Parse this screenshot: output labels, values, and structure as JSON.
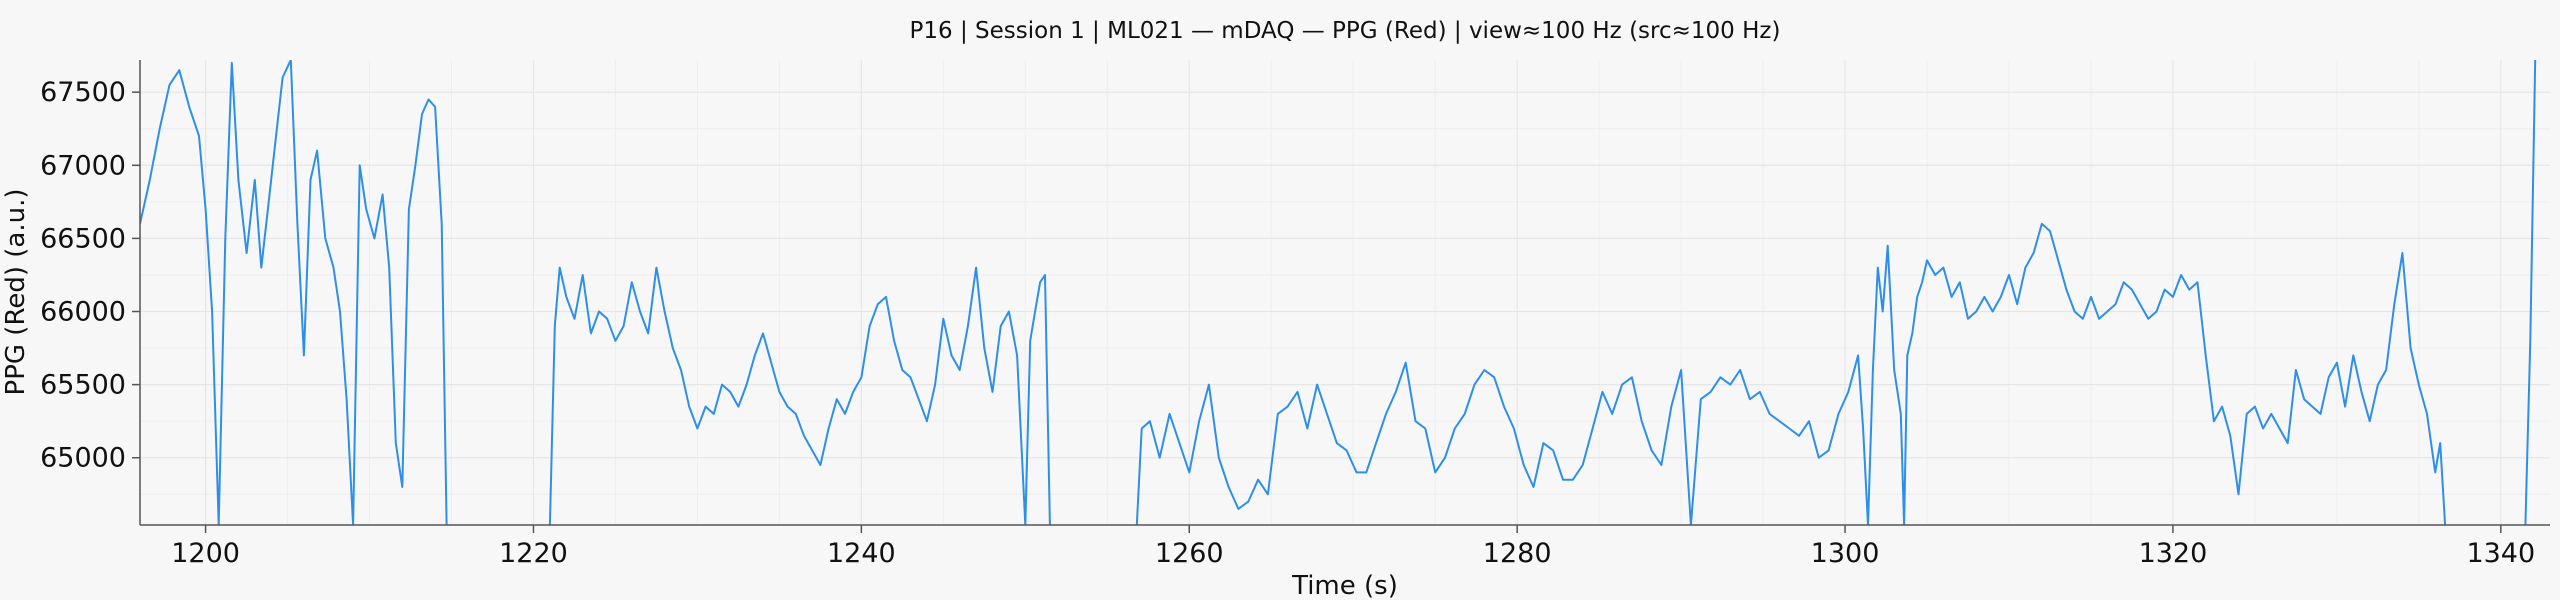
{
  "chart_data": {
    "type": "line",
    "title": "P16 | Session 1 | ML021 — mDAQ — PPG (Red) | view≈100 Hz (src≈100 Hz)",
    "xlabel": "Time (s)",
    "ylabel": "PPG (Red) (a.u.)",
    "xlim": [
      1196,
      1343
    ],
    "ylim": [
      64540,
      67720
    ],
    "xticks": [
      1200,
      1220,
      1240,
      1260,
      1280,
      1300,
      1320,
      1340
    ],
    "yticks": [
      65000,
      65500,
      66000,
      66500,
      67000,
      67500
    ],
    "grid": true,
    "legend": false,
    "colors": {
      "line": "#2e8fe8",
      "background": "#f7f7f7",
      "grid": "#e6e6e6",
      "axis": "#555555"
    },
    "series": [
      {
        "segments": [
          {
            "x": [
              1196.0,
              1196.6,
              1197.2,
              1197.8,
              1198.4,
              1199.0,
              1199.6,
              1200.0,
              1200.4,
              1200.8,
              1201.2,
              1201.6,
              1202.0,
              1202.5,
              1203.0,
              1203.4,
              1203.8,
              1204.2,
              1204.7,
              1205.2,
              1205.6,
              1206.0,
              1206.4,
              1206.8,
              1207.3,
              1207.8,
              1208.2,
              1208.6,
              1209.0,
              1209.4,
              1209.8,
              1210.3,
              1210.8,
              1211.2,
              1211.6,
              1212.0,
              1212.4,
              1212.8,
              1213.2,
              1213.6,
              1214.0,
              1214.4,
              1214.7
            ],
            "y": [
              66600,
              66900,
              67250,
              67550,
              67650,
              67400,
              67200,
              66700,
              66000,
              64540,
              66500,
              67700,
              66900,
              66400,
              66900,
              66300,
              66700,
              67100,
              67600,
              67720,
              66600,
              65700,
              66900,
              67100,
              66500,
              66300,
              66000,
              65400,
              64540,
              67000,
              66700,
              66500,
              66800,
              66300,
              65100,
              64800,
              66700,
              67000,
              67350,
              67450,
              67400,
              66600,
              64540
            ]
          },
          {
            "x": [
              1221.0,
              1221.3,
              1221.6,
              1222.0,
              1222.5,
              1223.0,
              1223.5,
              1224.0,
              1224.5,
              1225.0,
              1225.5,
              1226.0,
              1226.5,
              1227.0,
              1227.5,
              1228.0,
              1228.5,
              1229.0,
              1229.5,
              1230.0,
              1230.5,
              1231.0,
              1231.5,
              1232.0,
              1232.5,
              1233.0,
              1233.5,
              1234.0,
              1234.5,
              1235.0,
              1235.5,
              1236.0,
              1236.5,
              1237.0,
              1237.5,
              1238.0,
              1238.5,
              1239.0,
              1239.5,
              1240.0,
              1240.5,
              1241.0,
              1241.5,
              1242.0,
              1242.5,
              1243.0,
              1243.5,
              1244.0,
              1244.5,
              1245.0,
              1245.5,
              1246.0,
              1246.5,
              1247.0,
              1247.5,
              1248.0,
              1248.5,
              1249.0,
              1249.5,
              1250.0,
              1250.3,
              1250.6,
              1250.9,
              1251.2,
              1251.5
            ],
            "y": [
              64540,
              65900,
              66300,
              66100,
              65950,
              66250,
              65850,
              66000,
              65950,
              65800,
              65900,
              66200,
              66000,
              65850,
              66300,
              66000,
              65750,
              65600,
              65350,
              65200,
              65350,
              65300,
              65500,
              65450,
              65350,
              65500,
              65700,
              65850,
              65650,
              65450,
              65350,
              65300,
              65150,
              65050,
              64950,
              65200,
              65400,
              65300,
              65450,
              65550,
              65900,
              66050,
              66100,
              65800,
              65600,
              65550,
              65400,
              65250,
              65500,
              65950,
              65700,
              65600,
              65900,
              66300,
              65750,
              65450,
              65900,
              66000,
              65700,
              64540,
              65800,
              66000,
              66200,
              66250,
              64540
            ]
          },
          {
            "x": [
              1256.8,
              1257.1,
              1257.6,
              1258.2,
              1258.8,
              1259.4,
              1260.0,
              1260.6,
              1261.2,
              1261.8,
              1262.4,
              1263.0,
              1263.6,
              1264.2,
              1264.8,
              1265.4,
              1266.0,
              1266.6,
              1267.2,
              1267.8,
              1268.4,
              1269.0,
              1269.6,
              1270.2,
              1270.8,
              1271.4,
              1272.0,
              1272.6,
              1273.2,
              1273.8,
              1274.4,
              1275.0,
              1275.6,
              1276.2,
              1276.8,
              1277.4,
              1278.0,
              1278.6,
              1279.2,
              1279.8,
              1280.4,
              1281.0,
              1281.6,
              1282.2,
              1282.8,
              1283.4,
              1284.0,
              1284.6,
              1285.2,
              1285.8,
              1286.4,
              1287.0,
              1287.6,
              1288.2,
              1288.8,
              1289.4,
              1290.0,
              1290.6,
              1291.2,
              1291.8,
              1292.4,
              1293.0,
              1293.6,
              1294.2,
              1294.8,
              1295.4,
              1296.0,
              1296.6,
              1297.2,
              1297.8,
              1298.4,
              1299.0,
              1299.6,
              1300.2,
              1300.8,
              1301.1,
              1301.4,
              1301.7,
              1302.0,
              1302.3,
              1302.6,
              1303.0,
              1303.4,
              1303.6,
              1303.8,
              1304.1,
              1304.4,
              1304.7,
              1305.0,
              1305.5,
              1306.0,
              1306.5,
              1307.0,
              1307.5,
              1308.0,
              1308.5,
              1309.0,
              1309.5,
              1310.0,
              1310.5,
              1311.0,
              1311.5,
              1312.0,
              1312.5,
              1313.0,
              1313.5,
              1314.0,
              1314.5,
              1315.0,
              1315.5,
              1316.0,
              1316.5,
              1317.0,
              1317.5,
              1318.0,
              1318.5,
              1319.0,
              1319.5,
              1320.0,
              1320.5,
              1321.0,
              1321.5,
              1322.0,
              1322.5,
              1323.0,
              1323.5,
              1324.0,
              1324.5,
              1325.0,
              1325.5,
              1326.0,
              1326.5,
              1327.0,
              1327.5,
              1328.0,
              1328.5,
              1329.0,
              1329.5,
              1330.0,
              1330.5,
              1331.0,
              1331.5,
              1332.0,
              1332.5,
              1333.0,
              1333.5,
              1334.0,
              1334.5,
              1335.0,
              1335.5,
              1336.0,
              1336.3,
              1336.6
            ],
            "y": [
              64540,
              65200,
              65250,
              65000,
              65300,
              65100,
              64900,
              65250,
              65500,
              65000,
              64800,
              64650,
              64700,
              64850,
              64750,
              65300,
              65350,
              65450,
              65200,
              65500,
              65300,
              65100,
              65050,
              64900,
              64900,
              65100,
              65300,
              65450,
              65650,
              65250,
              65200,
              64900,
              65000,
              65200,
              65300,
              65500,
              65600,
              65550,
              65350,
              65200,
              64950,
              64800,
              65100,
              65050,
              64850,
              64850,
              64950,
              65200,
              65450,
              65300,
              65500,
              65550,
              65250,
              65050,
              64950,
              65350,
              65600,
              64540,
              65400,
              65450,
              65550,
              65500,
              65600,
              65400,
              65450,
              65300,
              65250,
              65200,
              65150,
              65250,
              65000,
              65050,
              65300,
              65450,
              65700,
              65200,
              64540,
              65600,
              66300,
              66000,
              66450,
              65600,
              65300,
              64540,
              65700,
              65850,
              66100,
              66200,
              66350,
              66250,
              66300,
              66100,
              66200,
              65950,
              66000,
              66100,
              66000,
              66100,
              66250,
              66050,
              66300,
              66400,
              66600,
              66550,
              66350,
              66150,
              66000,
              65950,
              66100,
              65950,
              66000,
              66050,
              66200,
              66150,
              66050,
              65950,
              66000,
              66150,
              66100,
              66250,
              66150,
              66200,
              65700,
              65250,
              65350,
              65150,
              64750,
              65300,
              65350,
              65200,
              65300,
              65200,
              65100,
              65600,
              65400,
              65350,
              65300,
              65550,
              65650,
              65350,
              65700,
              65450,
              65250,
              65500,
              65600,
              66050,
              66400,
              65750,
              65500,
              65300,
              64900,
              65100,
              64540
            ]
          },
          {
            "x": [
              1341.5,
              1341.8,
              1342.1
            ],
            "y": [
              64540,
              65800,
              67720
            ]
          }
        ]
      }
    ]
  }
}
